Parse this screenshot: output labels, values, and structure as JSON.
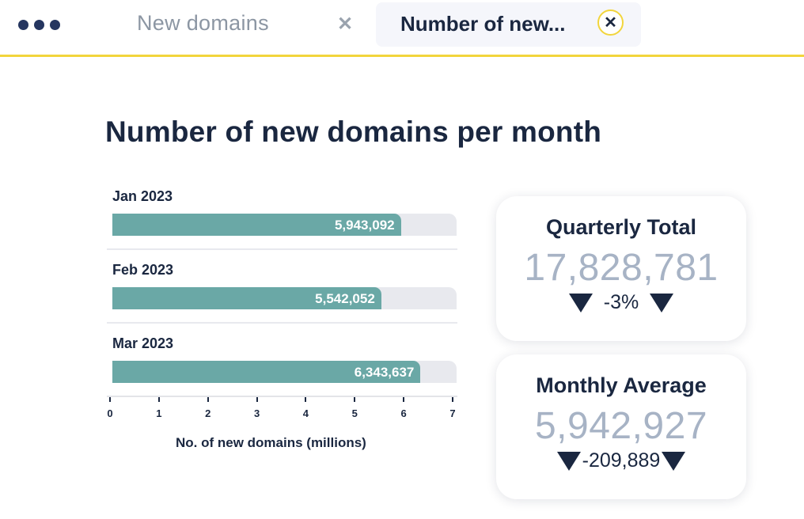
{
  "tabs": [
    {
      "label": "New domains",
      "active": false
    },
    {
      "label": "Number of new...",
      "active": true
    }
  ],
  "title": "Number of new domains per month",
  "chart_data": {
    "type": "bar",
    "orientation": "horizontal",
    "categories": [
      "Jan 2023",
      "Feb 2023",
      "Mar 2023"
    ],
    "values": [
      5943092,
      5542052,
      6343637
    ],
    "value_labels": [
      "5,943,092",
      "5,542,052",
      "6,343,637"
    ],
    "xlabel": "No. of new domains (millions)",
    "xlim": [
      0,
      7
    ],
    "xticks": [
      "0",
      "1",
      "2",
      "3",
      "4",
      "5",
      "6",
      "7"
    ],
    "bar_color": "#6aa8a6",
    "track_color": "#e8e9ee"
  },
  "kpis": {
    "quarterly": {
      "title": "Quarterly Total",
      "value": "17,828,781",
      "change": "-3%"
    },
    "monthly": {
      "title": "Monthly Average",
      "value": "5,942,927",
      "change": "-209,889"
    }
  },
  "colors": {
    "accent": "#f2d53c",
    "text": "#1a2740",
    "kpi_value": "#a7b3c5",
    "inactive_tab": "#8c96a3"
  },
  "icons": {
    "menu": "more-dots-icon",
    "close": "close-icon",
    "trend": "triangle-down-icon"
  }
}
